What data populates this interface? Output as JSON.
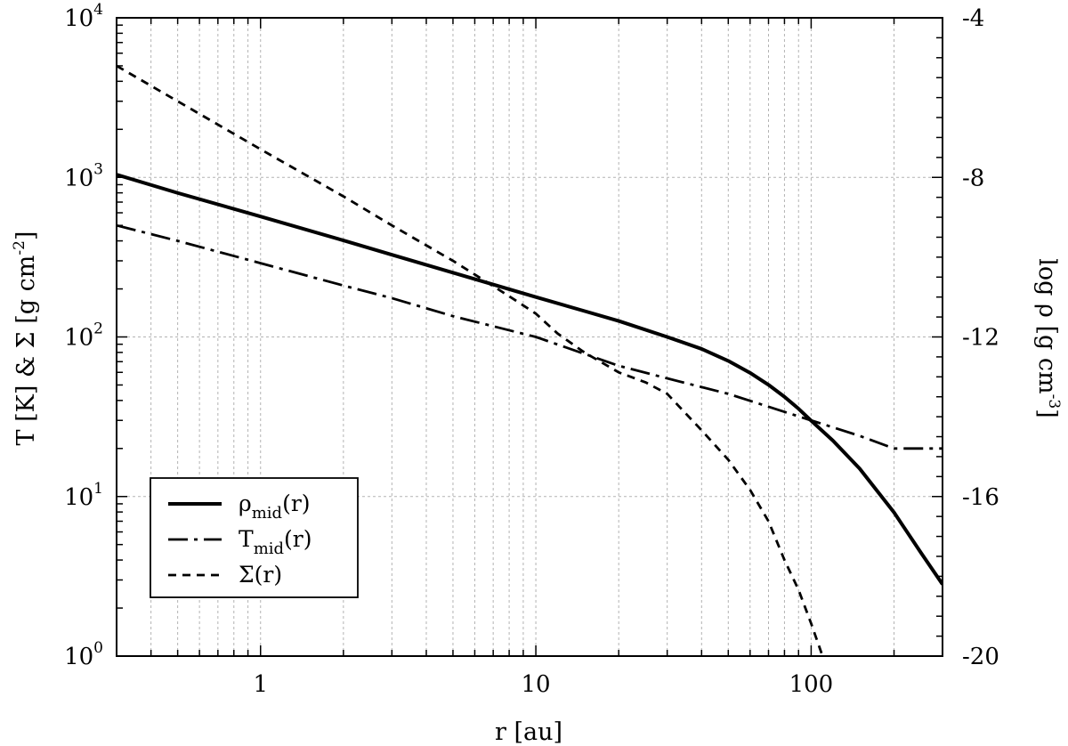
{
  "chart_data": {
    "type": "line",
    "xlabel": "r [au]",
    "ylabel_left": {
      "pre": "T [K]  &  Σ [g cm",
      "sup": "-2",
      "post": "]"
    },
    "ylabel_right": {
      "pre": "log ρ [g cm",
      "sup": "-3",
      "post": "]"
    },
    "x_scale": "log",
    "xlim": [
      0.3,
      300
    ],
    "ylim_left": [
      1,
      10000
    ],
    "y_scale_left": "log",
    "ylim_right": [
      -20,
      -4
    ],
    "y_scale_right": "linear",
    "grid": true,
    "x_ticks": [
      {
        "value": 1,
        "label": "1"
      },
      {
        "value": 10,
        "label": "10"
      },
      {
        "value": 100,
        "label": "100"
      }
    ],
    "y_left_ticks": [
      {
        "value": 1,
        "base": "10",
        "exp": "0"
      },
      {
        "value": 10,
        "base": "10",
        "exp": "1"
      },
      {
        "value": 100,
        "base": "10",
        "exp": "2"
      },
      {
        "value": 1000,
        "base": "10",
        "exp": "3"
      },
      {
        "value": 10000,
        "base": "10",
        "exp": "4"
      }
    ],
    "y_right_ticks": [
      {
        "value": -20,
        "label": "-20"
      },
      {
        "value": -16,
        "label": "-16"
      },
      {
        "value": -12,
        "label": "-12"
      },
      {
        "value": -8,
        "label": "-8"
      },
      {
        "value": -4,
        "label": "-4"
      }
    ],
    "legend_position": "bottom-left",
    "series": [
      {
        "name": "ρ_mid(r)",
        "label_main": "ρ",
        "label_sub": "mid",
        "label_tail": "(r)",
        "axis": "right",
        "style": "solid",
        "points": [
          [
            0.3,
            -7.93
          ],
          [
            0.5,
            -8.39
          ],
          [
            1,
            -8.98
          ],
          [
            2,
            -9.58
          ],
          [
            3,
            -9.94
          ],
          [
            5,
            -10.39
          ],
          [
            10,
            -11.0
          ],
          [
            15,
            -11.35
          ],
          [
            20,
            -11.6
          ],
          [
            30,
            -12.0
          ],
          [
            40,
            -12.3
          ],
          [
            50,
            -12.6
          ],
          [
            60,
            -12.9
          ],
          [
            70,
            -13.2
          ],
          [
            80,
            -13.5
          ],
          [
            90,
            -13.8
          ],
          [
            100,
            -14.1
          ],
          [
            120,
            -14.6
          ],
          [
            150,
            -15.3
          ],
          [
            200,
            -16.4
          ],
          [
            250,
            -17.4
          ],
          [
            300,
            -18.2
          ]
        ]
      },
      {
        "name": "T_mid(r)",
        "label_main": "T",
        "label_sub": "mid",
        "label_tail": "(r)",
        "axis": "left",
        "style": "dashdot",
        "points": [
          [
            0.3,
            500
          ],
          [
            0.5,
            400
          ],
          [
            1,
            290
          ],
          [
            2,
            210
          ],
          [
            3,
            175
          ],
          [
            5,
            135
          ],
          [
            10,
            100
          ],
          [
            20,
            66
          ],
          [
            30,
            55
          ],
          [
            50,
            44
          ],
          [
            100,
            30
          ],
          [
            150,
            24
          ],
          [
            200,
            20
          ],
          [
            300,
            20
          ]
        ]
      },
      {
        "name": "Σ(r)",
        "label_main": "Σ(r)",
        "label_sub": "",
        "label_tail": "",
        "axis": "left",
        "style": "dashed",
        "points": [
          [
            0.3,
            5000
          ],
          [
            0.5,
            3000
          ],
          [
            1,
            1500
          ],
          [
            2,
            760
          ],
          [
            3,
            500
          ],
          [
            5,
            300
          ],
          [
            8,
            180
          ],
          [
            10,
            140
          ],
          [
            12,
            105
          ],
          [
            15,
            80
          ],
          [
            20,
            60
          ],
          [
            25,
            52
          ],
          [
            30,
            44
          ],
          [
            40,
            26
          ],
          [
            50,
            17
          ],
          [
            60,
            11
          ],
          [
            70,
            7
          ],
          [
            80,
            4
          ],
          [
            90,
            2.6
          ],
          [
            100,
            1.6
          ],
          [
            110,
            1.0
          ]
        ]
      }
    ]
  }
}
